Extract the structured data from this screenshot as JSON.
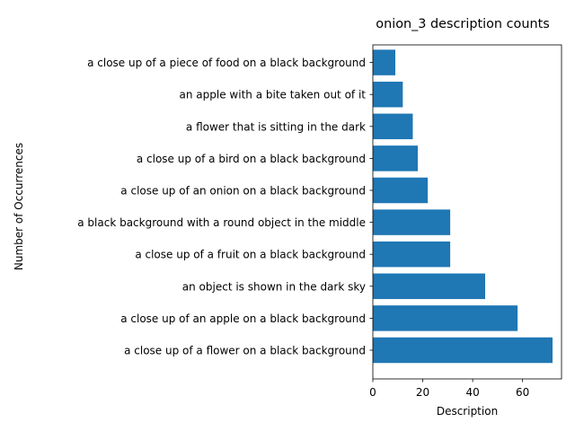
{
  "chart_data": {
    "type": "bar",
    "orientation": "horizontal",
    "title": "onion_3 description counts",
    "xlabel": "Description",
    "ylabel": "Number of Occurrences",
    "categories": [
      "a close up of a flower on a black background",
      "a close up of an apple on a black background",
      "an object is shown in the dark sky",
      "a close up of a fruit on a black background",
      "a black background with a round object in the middle",
      "a close up of an onion on a black background",
      "a close up of a bird on a black background",
      "a flower that is sitting in the dark",
      "an apple with a bite taken out of it",
      "a close up of a piece of food on a black background"
    ],
    "values": [
      72,
      58,
      45,
      31,
      31,
      22,
      18,
      16,
      12,
      9
    ],
    "xlim": [
      0,
      75.6
    ],
    "xticks": [
      0,
      20,
      40,
      60
    ],
    "bar_color": "#1f77b4",
    "grid": false,
    "legend": "none"
  }
}
